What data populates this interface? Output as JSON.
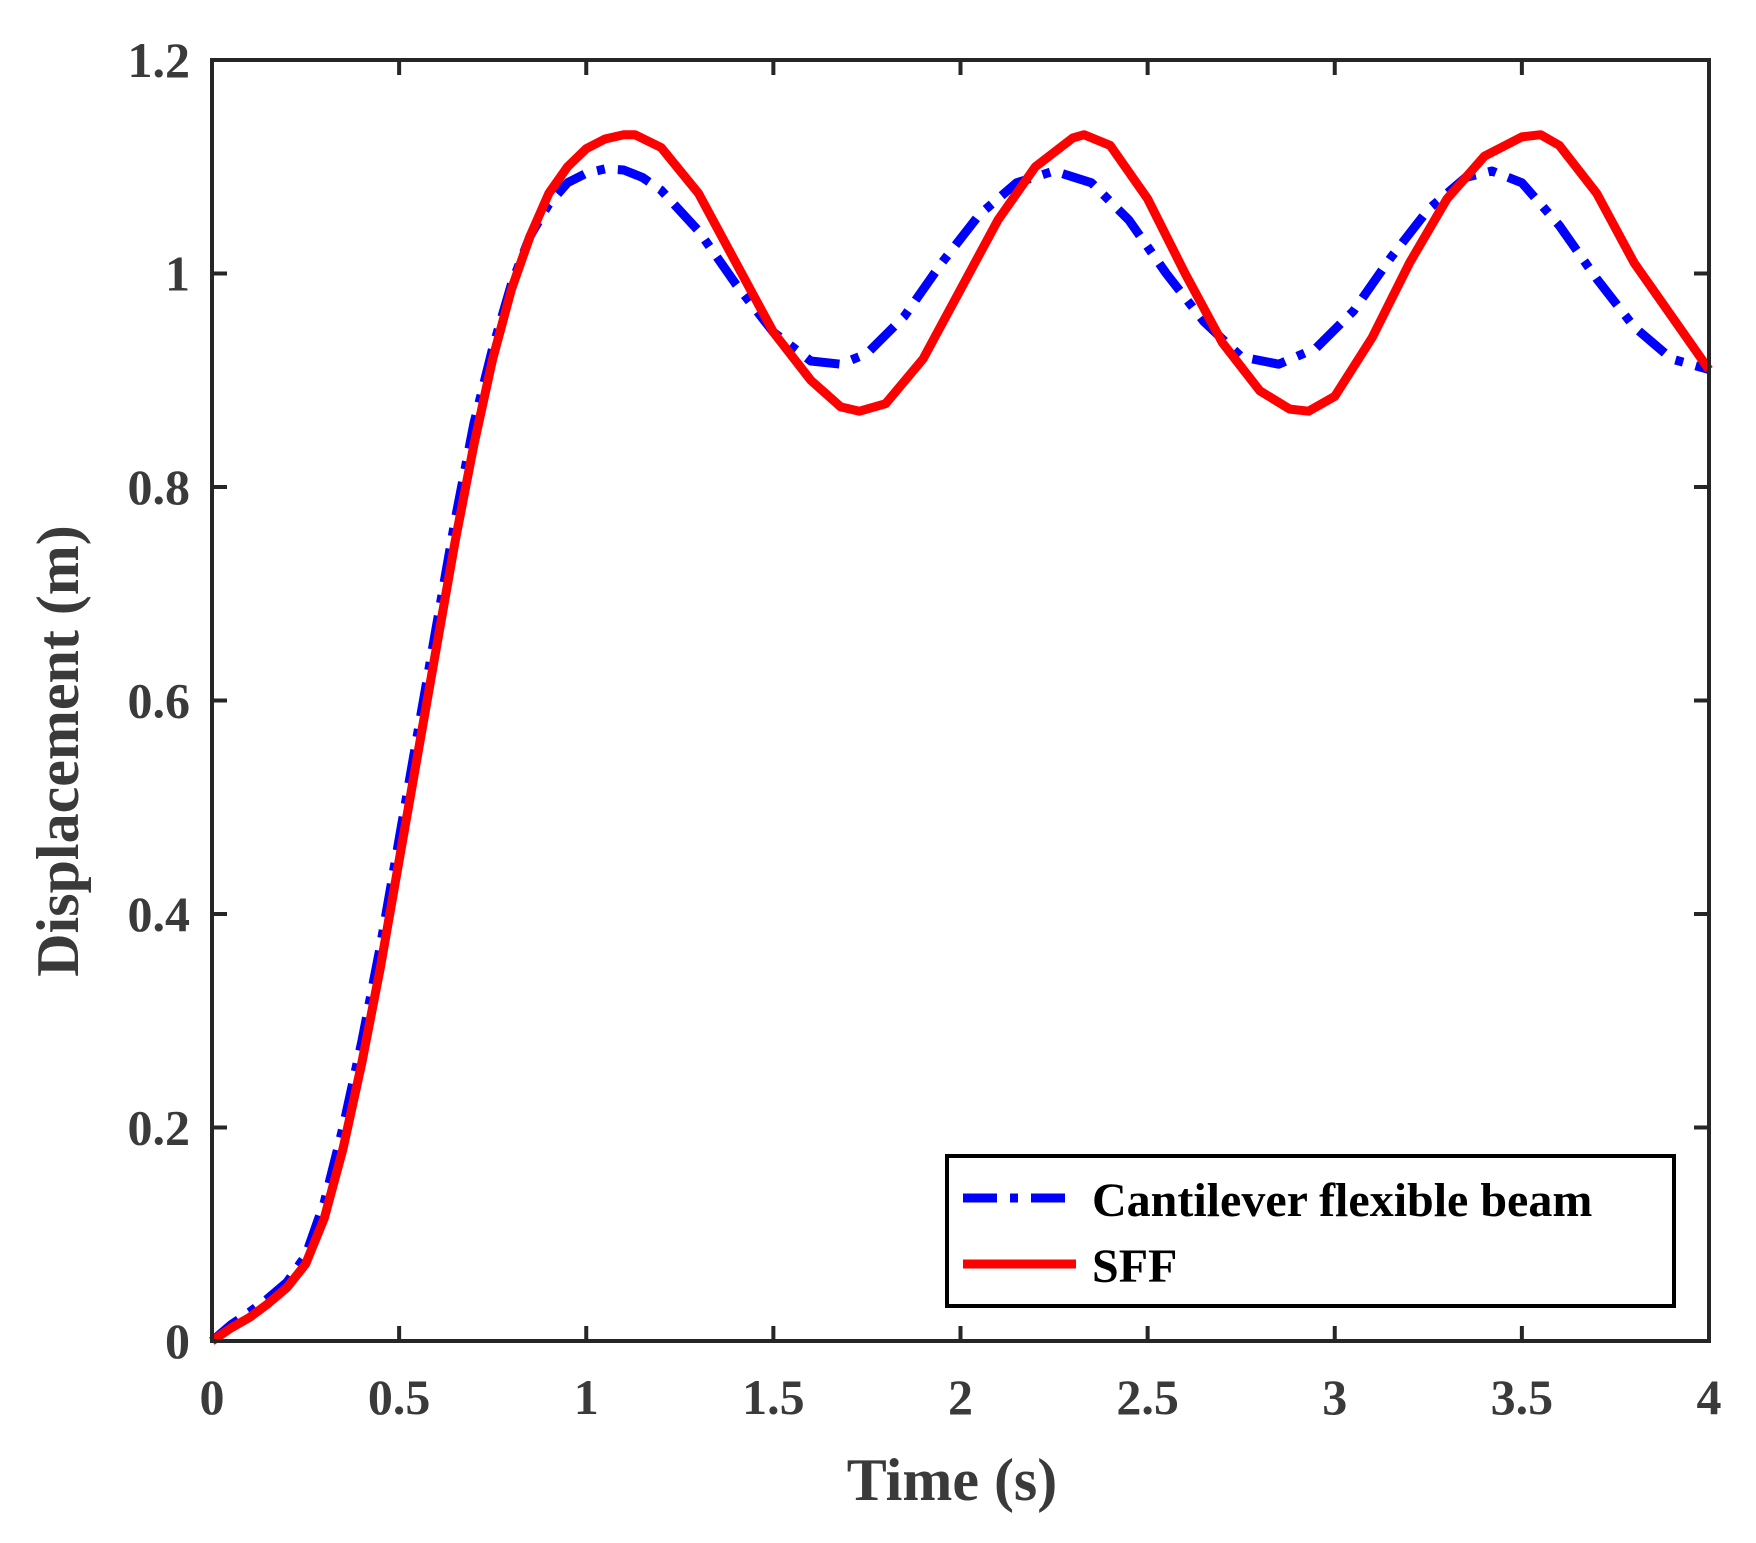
{
  "chart_data": {
    "type": "line",
    "title": "",
    "xlabel": "Time (s)",
    "ylabel": "Displacement (m)",
    "xlim": [
      0,
      4
    ],
    "ylim": [
      0,
      1.2
    ],
    "xticks": [
      0,
      0.5,
      1,
      1.5,
      2,
      2.5,
      3,
      3.5,
      4
    ],
    "xtick_labels": [
      "0",
      "0.5",
      "1",
      "1.5",
      "2",
      "2.5",
      "3",
      "3.5",
      "4"
    ],
    "yticks": [
      0,
      0.2,
      0.4,
      0.6,
      0.8,
      1,
      1.2
    ],
    "ytick_labels": [
      "0",
      "0.2",
      "0.4",
      "0.6",
      "0.8",
      "1",
      "1.2"
    ],
    "grid": false,
    "legend_position": "bottom-right",
    "series": [
      {
        "name": "Cantilever flexible beam",
        "color": "#0000ff",
        "style": "dash-dot",
        "x": [
          0,
          0.05,
          0.1,
          0.15,
          0.2,
          0.25,
          0.3,
          0.35,
          0.4,
          0.45,
          0.5,
          0.55,
          0.6,
          0.65,
          0.7,
          0.75,
          0.8,
          0.85,
          0.9,
          0.95,
          1.0,
          1.05,
          1.1,
          1.15,
          1.2,
          1.3,
          1.4,
          1.5,
          1.6,
          1.68,
          1.75,
          1.85,
          1.95,
          2.05,
          2.15,
          2.25,
          2.35,
          2.45,
          2.55,
          2.65,
          2.75,
          2.85,
          2.95,
          3.05,
          3.15,
          3.25,
          3.35,
          3.42,
          3.5,
          3.6,
          3.7,
          3.8,
          3.9,
          4.0
        ],
        "y": [
          0.0,
          0.015,
          0.027,
          0.04,
          0.055,
          0.08,
          0.13,
          0.2,
          0.28,
          0.37,
          0.47,
          0.57,
          0.67,
          0.77,
          0.86,
          0.93,
          0.99,
          1.035,
          1.065,
          1.085,
          1.094,
          1.098,
          1.097,
          1.09,
          1.078,
          1.04,
          0.99,
          0.945,
          0.918,
          0.915,
          0.925,
          0.96,
          1.01,
          1.055,
          1.085,
          1.096,
          1.085,
          1.05,
          1.0,
          0.955,
          0.922,
          0.915,
          0.93,
          0.965,
          1.015,
          1.06,
          1.09,
          1.096,
          1.085,
          1.045,
          0.995,
          0.95,
          0.92,
          0.91
        ]
      },
      {
        "name": "SFF",
        "color": "#ff0000",
        "style": "solid",
        "x": [
          0,
          0.05,
          0.1,
          0.15,
          0.2,
          0.25,
          0.3,
          0.35,
          0.4,
          0.45,
          0.5,
          0.55,
          0.6,
          0.65,
          0.7,
          0.75,
          0.8,
          0.85,
          0.9,
          0.95,
          1.0,
          1.05,
          1.1,
          1.13,
          1.2,
          1.3,
          1.4,
          1.5,
          1.6,
          1.68,
          1.73,
          1.8,
          1.9,
          2.0,
          2.1,
          2.2,
          2.3,
          2.33,
          2.4,
          2.5,
          2.6,
          2.7,
          2.8,
          2.88,
          2.93,
          3.0,
          3.1,
          3.2,
          3.3,
          3.4,
          3.5,
          3.55,
          3.6,
          3.7,
          3.8,
          3.9,
          4.0
        ],
        "y": [
          0.0,
          0.012,
          0.022,
          0.035,
          0.05,
          0.072,
          0.115,
          0.18,
          0.26,
          0.35,
          0.45,
          0.55,
          0.65,
          0.75,
          0.84,
          0.92,
          0.985,
          1.035,
          1.075,
          1.1,
          1.117,
          1.126,
          1.13,
          1.13,
          1.118,
          1.075,
          1.01,
          0.945,
          0.9,
          0.875,
          0.871,
          0.878,
          0.92,
          0.985,
          1.05,
          1.1,
          1.127,
          1.13,
          1.12,
          1.07,
          1.0,
          0.935,
          0.89,
          0.873,
          0.871,
          0.885,
          0.94,
          1.01,
          1.07,
          1.11,
          1.128,
          1.13,
          1.12,
          1.075,
          1.01,
          0.96,
          0.91
        ]
      }
    ]
  }
}
